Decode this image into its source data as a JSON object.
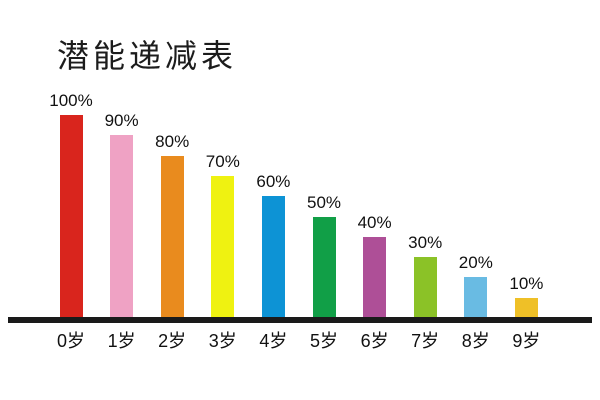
{
  "title": "潜能递减表",
  "chart_data": {
    "type": "bar",
    "title": "潜能递减表",
    "categories": [
      "0岁",
      "1岁",
      "2岁",
      "3岁",
      "4岁",
      "5岁",
      "6岁",
      "7岁",
      "8岁",
      "9岁"
    ],
    "values": [
      100,
      90,
      80,
      70,
      60,
      50,
      40,
      30,
      20,
      10
    ],
    "value_labels": [
      "100%",
      "90%",
      "80%",
      "70%",
      "60%",
      "50%",
      "40%",
      "30%",
      "20%",
      "10%"
    ],
    "bar_colors": [
      "#d9251d",
      "#efa2c4",
      "#e98b1e",
      "#eff211",
      "#0d93d5",
      "#119f47",
      "#ae4f97",
      "#8bc227",
      "#69bbe3",
      "#efc027"
    ],
    "xlabel": "",
    "ylabel": "",
    "ylim": [
      0,
      100
    ],
    "grid": false,
    "legend": "none",
    "axis_color": "#1a1a1a",
    "background": "#ffffff"
  }
}
